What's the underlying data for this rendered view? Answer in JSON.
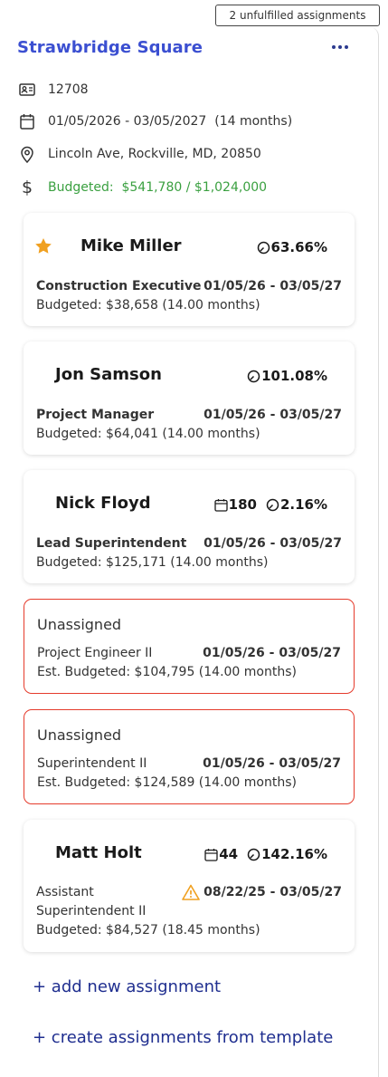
{
  "badge": {
    "unfulfilled": "2 unfulfilled assignments"
  },
  "project": {
    "title": "Strawbridge Square",
    "id": "12708",
    "dates": "01/05/2026 - 03/05/2027  (14 months)",
    "address": "Lincoln Ave, Rockville, MD, 20850",
    "budget": "Budgeted:  $541,780 / $1,024,000"
  },
  "assignments": [
    {
      "name": "Mike Miller",
      "starred": true,
      "percent": "63.66%",
      "role": "Construction Executive",
      "dates": "01/05/26 - 03/05/27",
      "budget": "Budgeted: $38,658 (14.00 months)"
    },
    {
      "name": "Jon Samson",
      "percent": "101.08%",
      "role": "Project Manager",
      "dates": "01/05/26 - 03/05/27",
      "budget": "Budgeted: $64,041 (14.00 months)"
    },
    {
      "name": "Nick Floyd",
      "days": "180",
      "percent": "2.16%",
      "role": "Lead Superintendent",
      "dates": "01/05/26 - 03/05/27",
      "budget": "Budgeted: $125,171 (14.00 months)"
    },
    {
      "label": "Unassigned",
      "role": "Project Engineer II",
      "dates": "01/05/26 - 03/05/27",
      "budget": "Est. Budgeted: $104,795 (14.00 months)"
    },
    {
      "label": "Unassigned",
      "role": "Superintendent II",
      "dates": "01/05/26 - 03/05/27",
      "budget": "Est. Budgeted: $124,589 (14.00 months)"
    },
    {
      "name": "Matt Holt",
      "days": "44",
      "percent": "142.16%",
      "role_line1": "Assistant",
      "role_line2": "Superintendent II",
      "warning": true,
      "dates": "08/22/25 - 03/05/27",
      "budget": "Budgeted: $84,527 (18.45 months)"
    }
  ],
  "actions": {
    "add": "+ add new assignment",
    "template": "+ create assignments from template"
  },
  "colors": {
    "accent": "#3b4fd1",
    "budget_green": "#3aa040",
    "unassigned_border": "#e53b2c",
    "star": "#f0a020",
    "warning": "#f0a020"
  }
}
